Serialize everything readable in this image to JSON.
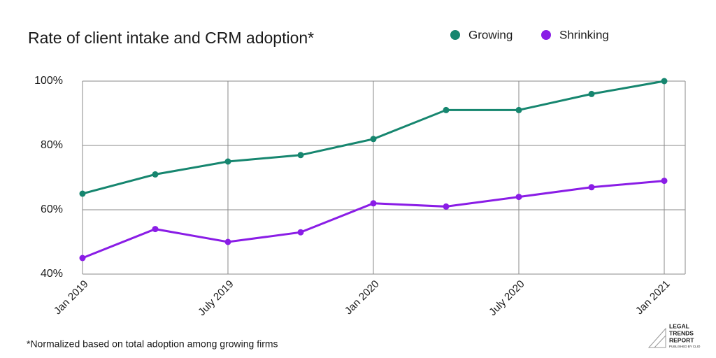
{
  "chart_data": {
    "type": "line",
    "title": "Rate of client intake and CRM adoption*",
    "categories": [
      "Jan 2019",
      null,
      "July 2019",
      null,
      "Jan 2020",
      null,
      "July 2020",
      null,
      "Jan 2021"
    ],
    "series": [
      {
        "name": "Growing",
        "color": "#16866f",
        "values": [
          65,
          71,
          75,
          77,
          82,
          91,
          91,
          96,
          100
        ]
      },
      {
        "name": "Shrinking",
        "color": "#8a1de6",
        "values": [
          45,
          54,
          50,
          53,
          62,
          61,
          64,
          67,
          69
        ]
      }
    ],
    "ylim": [
      40,
      100
    ],
    "yticks": [
      {
        "value": 40,
        "label": "40%"
      },
      {
        "value": 60,
        "label": "60%"
      },
      {
        "value": 80,
        "label": "80%"
      },
      {
        "value": 100,
        "label": "100%"
      }
    ],
    "grid": true,
    "legend": "top-right",
    "footnote": "*Normalized based on total adoption among growing firms",
    "logo": [
      "LEGAL",
      "TRENDS",
      "REPORT"
    ],
    "logo_sub": "PUBLISHED BY CLIO"
  }
}
